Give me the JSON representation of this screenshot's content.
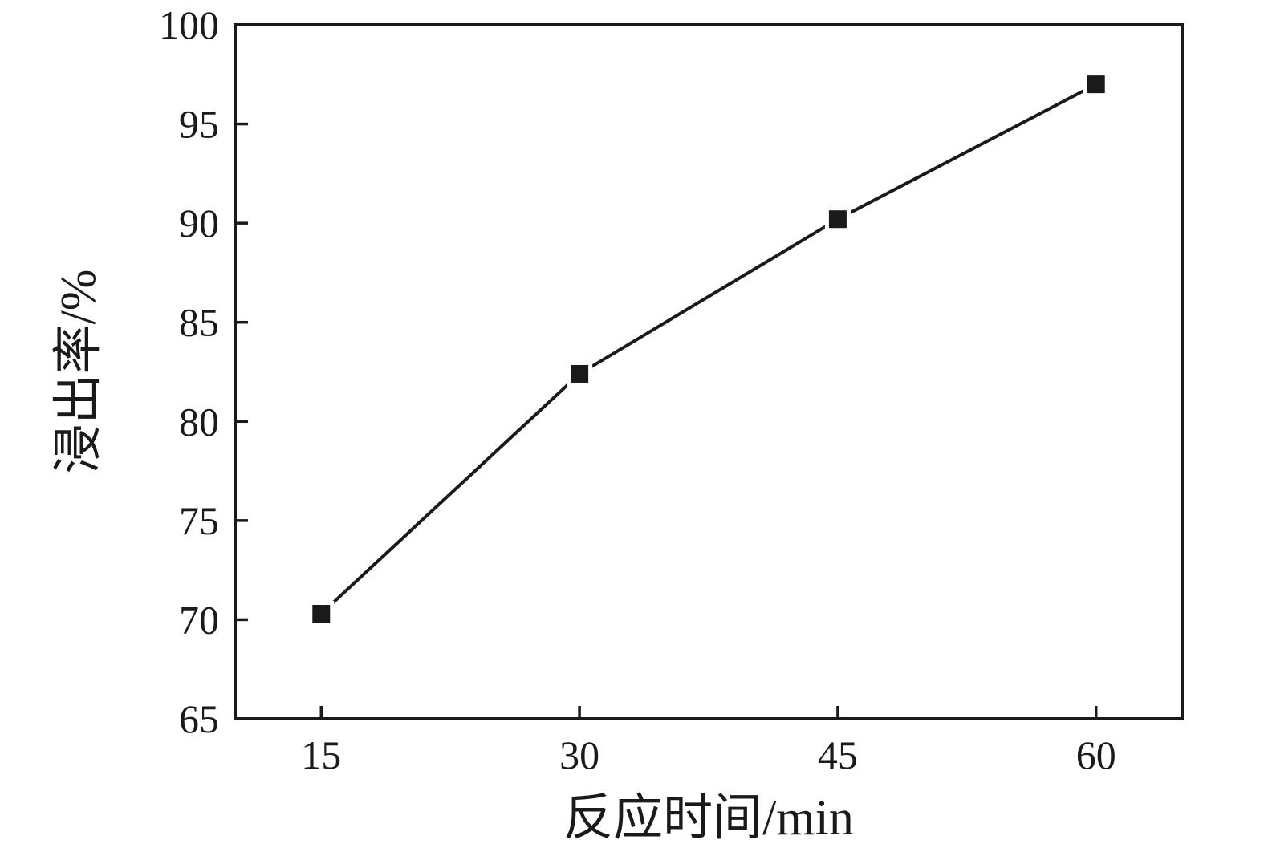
{
  "page": {
    "background": "#ffffff",
    "ink_color": "#1a1a1a"
  },
  "chart_data": {
    "type": "line",
    "title": "",
    "xlabel": "反应时间/min",
    "ylabel": "浸出率/%",
    "x": [
      15,
      30,
      45,
      60
    ],
    "series": [
      {
        "name": "浸出率",
        "values": [
          70.3,
          82.4,
          90.2,
          97.0
        ]
      }
    ],
    "xlim": [
      10,
      65
    ],
    "ylim": [
      65,
      100
    ],
    "xticks": [
      15,
      30,
      45,
      60
    ],
    "yticks": [
      65,
      70,
      75,
      80,
      85,
      90,
      95,
      100
    ],
    "grid": false,
    "legend": "none",
    "marker": "filled-square",
    "marker_size_px": 22,
    "line_color": "#1a1a1a",
    "marker_color": "#1a1a1a"
  }
}
